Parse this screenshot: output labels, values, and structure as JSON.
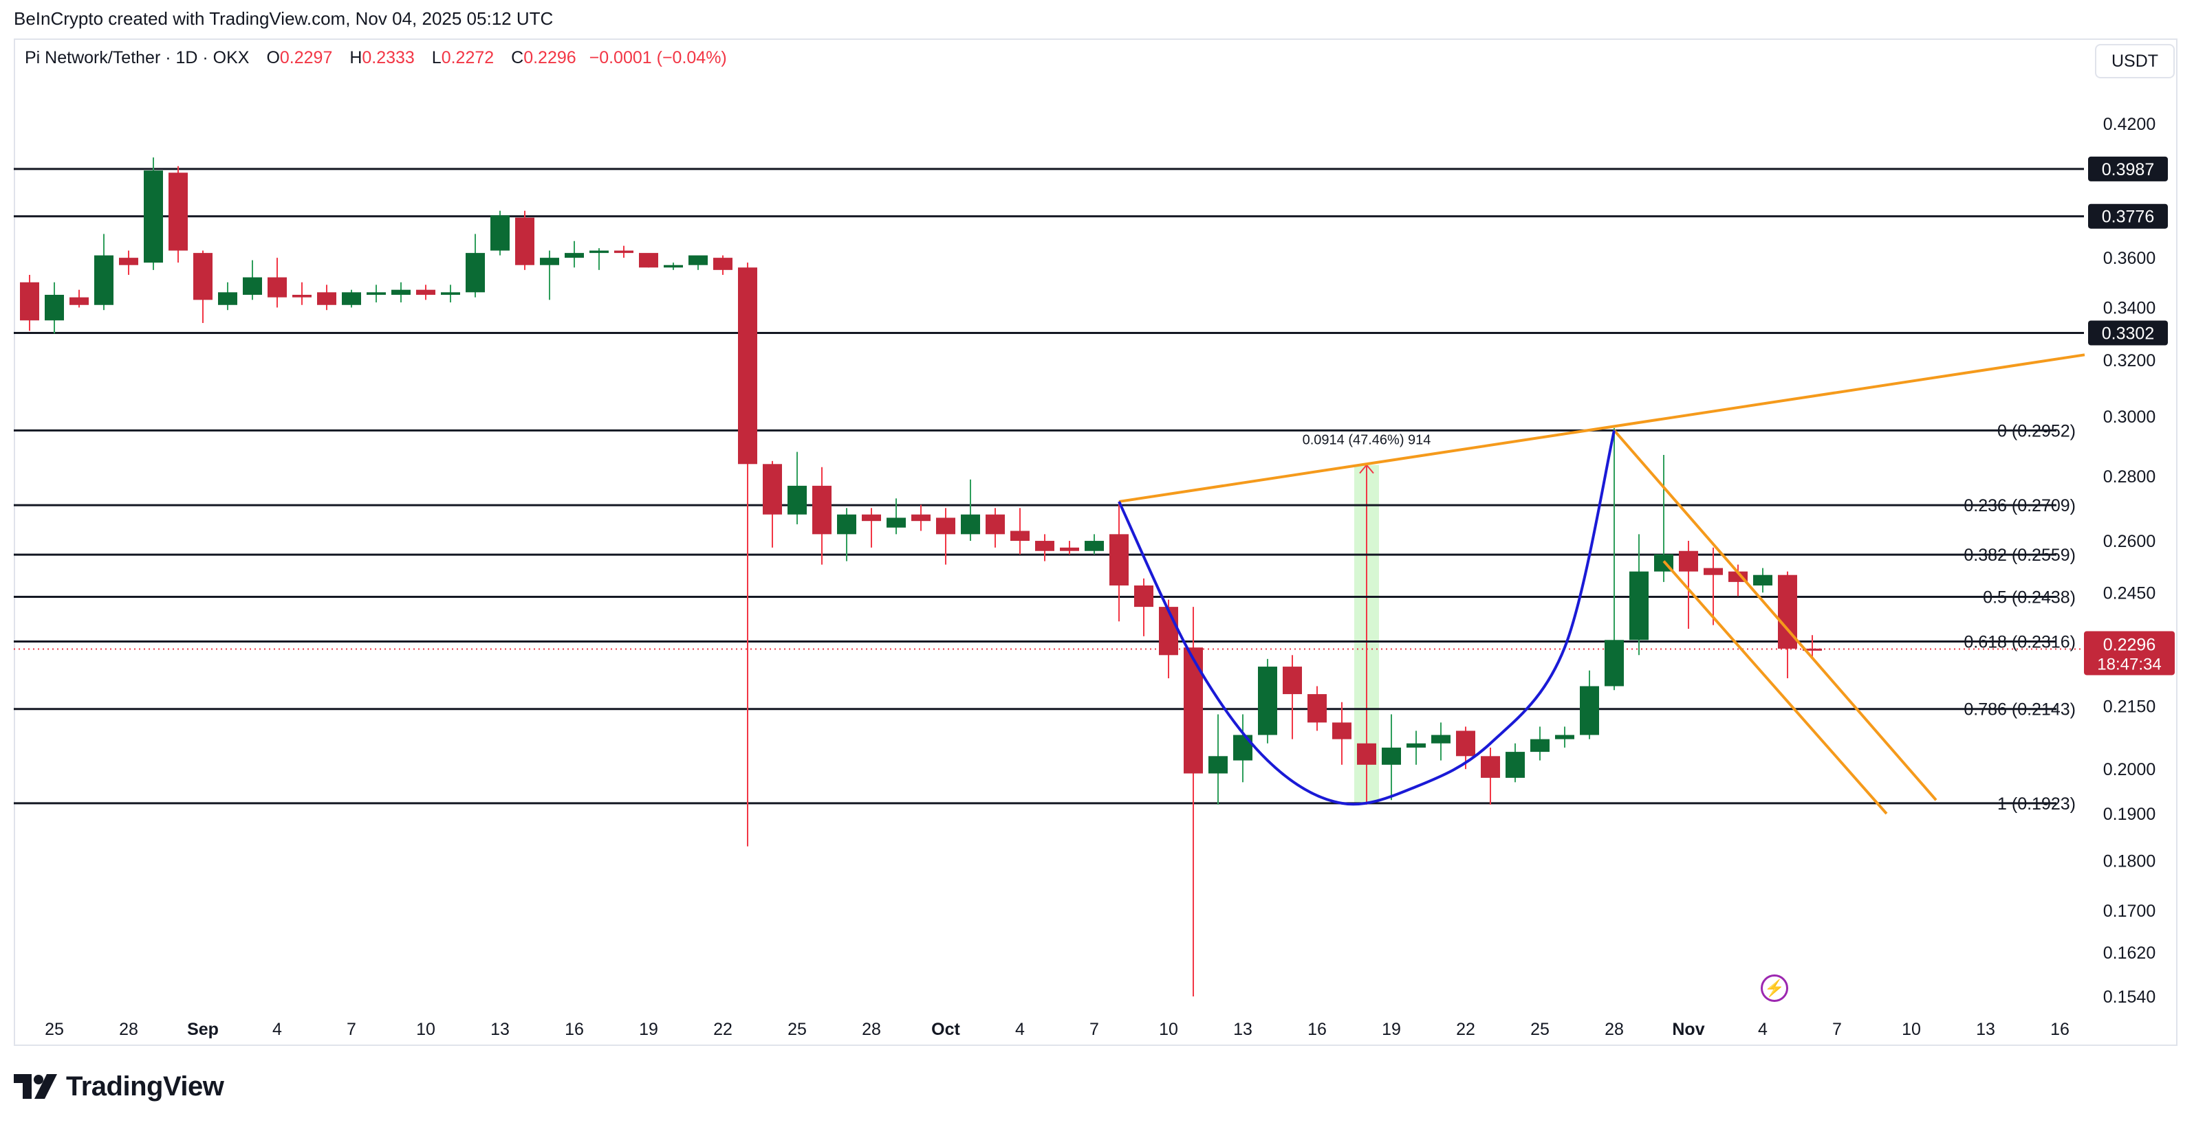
{
  "credit": "BeInCrypto created with TradingView.com, Nov 04, 2025 05:12 UTC",
  "legend": {
    "symbol": "Pi Network/Tether · 1D · OKX",
    "open_label": "O",
    "open": "0.2297",
    "high_label": "H",
    "high": "0.2333",
    "low_label": "L",
    "low": "0.2272",
    "close_label": "C",
    "close": "0.2296",
    "change": "−0.0001 (−0.04%)"
  },
  "currency_button": "USDT",
  "brand": {
    "name": "TradingView",
    "logo_icon": "tradingview-logo-icon"
  },
  "alert_icon": "lightning-icon",
  "colors": {
    "up": "#0b6b34",
    "down": "#c3283b",
    "fib": "#131722",
    "trend": "#f59a1b",
    "cup": "#1a1ad6",
    "measure": "#cdf5c8"
  },
  "chart_data": {
    "type": "candlestick",
    "x_tick_labels": [
      "25",
      "28",
      "Sep",
      "4",
      "7",
      "10",
      "13",
      "16",
      "19",
      "22",
      "25",
      "28",
      "Oct",
      "4",
      "7",
      "10",
      "13",
      "16",
      "19",
      "22",
      "25",
      "28",
      "Nov",
      "4",
      "7",
      "10",
      "13",
      "16"
    ],
    "y_tick_labels": [
      "0.4200",
      "0.3600",
      "0.3400",
      "0.3200",
      "0.3000",
      "0.2800",
      "0.2600",
      "0.2450",
      "0.2150",
      "0.2000",
      "0.1900",
      "0.1800",
      "0.1700",
      "0.1620",
      "0.1540"
    ],
    "y_scale": "log",
    "grid": false,
    "candles": [
      {
        "date": "Aug 24",
        "o": 0.35,
        "h": 0.353,
        "l": 0.331,
        "c": 0.335
      },
      {
        "date": "Aug 25",
        "o": 0.335,
        "h": 0.35,
        "l": 0.33,
        "c": 0.345
      },
      {
        "date": "Aug 26",
        "o": 0.344,
        "h": 0.347,
        "l": 0.34,
        "c": 0.341
      },
      {
        "date": "Aug 27",
        "o": 0.341,
        "h": 0.37,
        "l": 0.339,
        "c": 0.361
      },
      {
        "date": "Aug 28",
        "o": 0.36,
        "h": 0.363,
        "l": 0.353,
        "c": 0.357
      },
      {
        "date": "Aug 29",
        "o": 0.358,
        "h": 0.404,
        "l": 0.355,
        "c": 0.398
      },
      {
        "date": "Aug 30",
        "o": 0.397,
        "h": 0.4,
        "l": 0.358,
        "c": 0.363
      },
      {
        "date": "Aug 31",
        "o": 0.362,
        "h": 0.363,
        "l": 0.334,
        "c": 0.343
      },
      {
        "date": "Sep 1",
        "o": 0.341,
        "h": 0.35,
        "l": 0.339,
        "c": 0.346
      },
      {
        "date": "Sep 2",
        "o": 0.345,
        "h": 0.359,
        "l": 0.343,
        "c": 0.352
      },
      {
        "date": "Sep 3",
        "o": 0.352,
        "h": 0.36,
        "l": 0.34,
        "c": 0.344
      },
      {
        "date": "Sep 4",
        "o": 0.345,
        "h": 0.35,
        "l": 0.341,
        "c": 0.344
      },
      {
        "date": "Sep 5",
        "o": 0.346,
        "h": 0.349,
        "l": 0.339,
        "c": 0.341
      },
      {
        "date": "Sep 6",
        "o": 0.341,
        "h": 0.347,
        "l": 0.34,
        "c": 0.346
      },
      {
        "date": "Sep 7",
        "o": 0.345,
        "h": 0.349,
        "l": 0.342,
        "c": 0.346
      },
      {
        "date": "Sep 8",
        "o": 0.345,
        "h": 0.35,
        "l": 0.342,
        "c": 0.347
      },
      {
        "date": "Sep 9",
        "o": 0.347,
        "h": 0.349,
        "l": 0.343,
        "c": 0.345
      },
      {
        "date": "Sep 10",
        "o": 0.345,
        "h": 0.349,
        "l": 0.342,
        "c": 0.346
      },
      {
        "date": "Sep 11",
        "o": 0.346,
        "h": 0.37,
        "l": 0.344,
        "c": 0.362
      },
      {
        "date": "Sep 12",
        "o": 0.363,
        "h": 0.38,
        "l": 0.361,
        "c": 0.378
      },
      {
        "date": "Sep 13",
        "o": 0.377,
        "h": 0.38,
        "l": 0.355,
        "c": 0.357
      },
      {
        "date": "Sep 14",
        "o": 0.357,
        "h": 0.363,
        "l": 0.343,
        "c": 0.36
      },
      {
        "date": "Sep 15",
        "o": 0.36,
        "h": 0.367,
        "l": 0.356,
        "c": 0.362
      },
      {
        "date": "Sep 16",
        "o": 0.362,
        "h": 0.364,
        "l": 0.355,
        "c": 0.363
      },
      {
        "date": "Sep 17",
        "o": 0.363,
        "h": 0.365,
        "l": 0.36,
        "c": 0.362
      },
      {
        "date": "Sep 18",
        "o": 0.362,
        "h": 0.36,
        "l": 0.356,
        "c": 0.356
      },
      {
        "date": "Sep 19",
        "o": 0.356,
        "h": 0.358,
        "l": 0.355,
        "c": 0.357
      },
      {
        "date": "Sep 20",
        "o": 0.357,
        "h": 0.36,
        "l": 0.355,
        "c": 0.361
      },
      {
        "date": "Sep 21",
        "o": 0.36,
        "h": 0.361,
        "l": 0.353,
        "c": 0.355
      },
      {
        "date": "Sep 22",
        "o": 0.356,
        "h": 0.358,
        "l": 0.183,
        "c": 0.284
      },
      {
        "date": "Sep 23",
        "o": 0.284,
        "h": 0.285,
        "l": 0.258,
        "c": 0.268
      },
      {
        "date": "Sep 24",
        "o": 0.268,
        "h": 0.288,
        "l": 0.265,
        "c": 0.277
      },
      {
        "date": "Sep 25",
        "o": 0.277,
        "h": 0.283,
        "l": 0.253,
        "c": 0.262
      },
      {
        "date": "Sep 26",
        "o": 0.262,
        "h": 0.27,
        "l": 0.254,
        "c": 0.268
      },
      {
        "date": "Sep 27",
        "o": 0.268,
        "h": 0.27,
        "l": 0.258,
        "c": 0.266
      },
      {
        "date": "Sep 28",
        "o": 0.264,
        "h": 0.273,
        "l": 0.262,
        "c": 0.267
      },
      {
        "date": "Sep 29",
        "o": 0.268,
        "h": 0.271,
        "l": 0.263,
        "c": 0.266
      },
      {
        "date": "Sep 30",
        "o": 0.267,
        "h": 0.27,
        "l": 0.253,
        "c": 0.262
      },
      {
        "date": "Oct 1",
        "o": 0.262,
        "h": 0.279,
        "l": 0.26,
        "c": 0.268
      },
      {
        "date": "Oct 2",
        "o": 0.268,
        "h": 0.27,
        "l": 0.258,
        "c": 0.262
      },
      {
        "date": "Oct 3",
        "o": 0.263,
        "h": 0.27,
        "l": 0.256,
        "c": 0.26
      },
      {
        "date": "Oct 4",
        "o": 0.26,
        "h": 0.262,
        "l": 0.254,
        "c": 0.257
      },
      {
        "date": "Oct 5",
        "o": 0.258,
        "h": 0.26,
        "l": 0.256,
        "c": 0.257
      },
      {
        "date": "Oct 6",
        "o": 0.257,
        "h": 0.262,
        "l": 0.256,
        "c": 0.26
      },
      {
        "date": "Oct 7",
        "o": 0.262,
        "h": 0.272,
        "l": 0.237,
        "c": 0.247
      },
      {
        "date": "Oct 8",
        "o": 0.247,
        "h": 0.249,
        "l": 0.233,
        "c": 0.241
      },
      {
        "date": "Oct 9",
        "o": 0.241,
        "h": 0.243,
        "l": 0.222,
        "c": 0.228
      },
      {
        "date": "Oct 10",
        "o": 0.23,
        "h": 0.241,
        "l": 0.154,
        "c": 0.199
      },
      {
        "date": "Oct 11",
        "o": 0.199,
        "h": 0.213,
        "l": 0.192,
        "c": 0.203
      },
      {
        "date": "Oct 12",
        "o": 0.202,
        "h": 0.213,
        "l": 0.197,
        "c": 0.208
      },
      {
        "date": "Oct 13",
        "o": 0.208,
        "h": 0.227,
        "l": 0.206,
        "c": 0.225
      },
      {
        "date": "Oct 14",
        "o": 0.225,
        "h": 0.228,
        "l": 0.207,
        "c": 0.218
      },
      {
        "date": "Oct 15",
        "o": 0.218,
        "h": 0.22,
        "l": 0.209,
        "c": 0.211
      },
      {
        "date": "Oct 16",
        "o": 0.211,
        "h": 0.216,
        "l": 0.201,
        "c": 0.207
      },
      {
        "date": "Oct 17",
        "o": 0.206,
        "h": 0.213,
        "l": 0.192,
        "c": 0.201
      },
      {
        "date": "Oct 18",
        "o": 0.201,
        "h": 0.213,
        "l": 0.193,
        "c": 0.205
      },
      {
        "date": "Oct 19",
        "o": 0.205,
        "h": 0.209,
        "l": 0.201,
        "c": 0.206
      },
      {
        "date": "Oct 20",
        "o": 0.206,
        "h": 0.211,
        "l": 0.202,
        "c": 0.208
      },
      {
        "date": "Oct 21",
        "o": 0.209,
        "h": 0.21,
        "l": 0.2,
        "c": 0.203
      },
      {
        "date": "Oct 22",
        "o": 0.203,
        "h": 0.205,
        "l": 0.192,
        "c": 0.198
      },
      {
        "date": "Oct 23",
        "o": 0.198,
        "h": 0.206,
        "l": 0.197,
        "c": 0.204
      },
      {
        "date": "Oct 24",
        "o": 0.204,
        "h": 0.21,
        "l": 0.202,
        "c": 0.207
      },
      {
        "date": "Oct 25",
        "o": 0.207,
        "h": 0.21,
        "l": 0.205,
        "c": 0.208
      },
      {
        "date": "Oct 26",
        "o": 0.208,
        "h": 0.224,
        "l": 0.207,
        "c": 0.22
      },
      {
        "date": "Oct 27",
        "o": 0.22,
        "h": 0.296,
        "l": 0.219,
        "c": 0.232
      },
      {
        "date": "Oct 28",
        "o": 0.232,
        "h": 0.262,
        "l": 0.228,
        "c": 0.251
      },
      {
        "date": "Oct 29",
        "o": 0.251,
        "h": 0.287,
        "l": 0.248,
        "c": 0.256
      },
      {
        "date": "Oct 30",
        "o": 0.257,
        "h": 0.26,
        "l": 0.235,
        "c": 0.251
      },
      {
        "date": "Oct 31",
        "o": 0.252,
        "h": 0.258,
        "l": 0.236,
        "c": 0.25
      },
      {
        "date": "Nov 1",
        "o": 0.251,
        "h": 0.253,
        "l": 0.244,
        "c": 0.248
      },
      {
        "date": "Nov 2",
        "o": 0.247,
        "h": 0.252,
        "l": 0.245,
        "c": 0.25
      },
      {
        "date": "Nov 3",
        "o": 0.25,
        "h": 0.251,
        "l": 0.222,
        "c": 0.2297
      },
      {
        "date": "Nov 4",
        "o": 0.2297,
        "h": 0.2333,
        "l": 0.2272,
        "c": 0.2296
      }
    ],
    "fib_levels": [
      {
        "ratio": "0",
        "label": "0 (0.2952)",
        "value": 0.2952
      },
      {
        "ratio": "0.236",
        "label": "0.236 (0.2709)",
        "value": 0.2709
      },
      {
        "ratio": "0.382",
        "label": "0.382 (0.2559)",
        "value": 0.2559
      },
      {
        "ratio": "0.5",
        "label": "0.5 (0.2438)",
        "value": 0.2438
      },
      {
        "ratio": "0.618",
        "label": "0.618 (0.2316)",
        "value": 0.2316
      },
      {
        "ratio": "0.786",
        "label": "0.786 (0.2143)",
        "value": 0.2143
      },
      {
        "ratio": "1",
        "label": "1 (0.1923)",
        "value": 0.1923
      }
    ],
    "horizontal_levels": [
      {
        "label": "0.3987",
        "value": 0.3987
      },
      {
        "label": "0.3776",
        "value": 0.3776
      },
      {
        "label": "0.3302",
        "value": 0.3302
      }
    ],
    "current_price": {
      "label": "0.2296",
      "value": 0.2296,
      "countdown": "18:47:34"
    },
    "measure": {
      "label": "0.0914 (47.46%) 914",
      "from_value": 0.1923,
      "to_value": 0.2837,
      "date": "Oct 17"
    },
    "trendlines": [
      {
        "name": "rising-resistance",
        "from": {
          "date": "Oct 7",
          "value": 0.272
        },
        "to": {
          "date": "Nov 15",
          "value": 0.322
        }
      },
      {
        "name": "falling-channel-upper",
        "from": {
          "date": "Oct 27",
          "value": 0.2952
        },
        "to": {
          "date": "Nov 9",
          "value": 0.193
        }
      },
      {
        "name": "falling-channel-lower",
        "from": {
          "date": "Oct 29",
          "value": 0.254
        },
        "to": {
          "date": "Nov 7",
          "value": 0.19
        }
      }
    ],
    "cup_curve": [
      {
        "date": "Oct 7",
        "value": 0.272
      },
      {
        "date": "Oct 10",
        "value": 0.227
      },
      {
        "date": "Oct 13",
        "value": 0.202
      },
      {
        "date": "Oct 16",
        "value": 0.1923
      },
      {
        "date": "Oct 19",
        "value": 0.196
      },
      {
        "date": "Oct 22",
        "value": 0.206
      },
      {
        "date": "Oct 25",
        "value": 0.23
      },
      {
        "date": "Oct 27",
        "value": 0.2952
      }
    ]
  }
}
